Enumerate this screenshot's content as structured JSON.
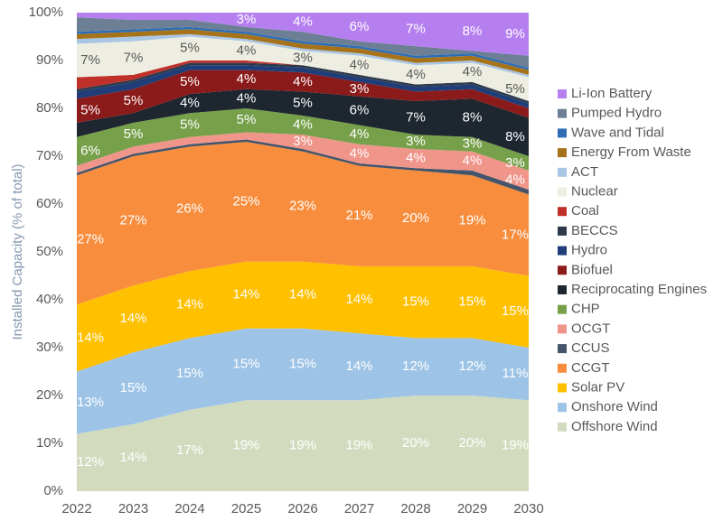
{
  "chart_data": {
    "type": "stacked-area",
    "y_label": "Installed Capacity (% of total)",
    "x": [
      2022,
      2023,
      2024,
      2025,
      2026,
      2027,
      2028,
      2029,
      2030
    ],
    "xlim": [
      2022,
      2030
    ],
    "ylim": [
      0,
      100
    ],
    "yticks": [
      {
        "value": 0,
        "label": "0%"
      },
      {
        "value": 10,
        "label": "10%"
      },
      {
        "value": 20,
        "label": "20%"
      },
      {
        "value": 30,
        "label": "30%"
      },
      {
        "value": 40,
        "label": "40%"
      },
      {
        "value": 50,
        "label": "50%"
      },
      {
        "value": 60,
        "label": "60%"
      },
      {
        "value": 70,
        "label": "70%"
      },
      {
        "value": 80,
        "label": "80%"
      },
      {
        "value": 90,
        "label": "90%"
      },
      {
        "value": 100,
        "label": "100%"
      }
    ],
    "series": [
      {
        "name": "Offshore Wind",
        "color": "#d3dbbf",
        "values": [
          12,
          14,
          17,
          19,
          19,
          19,
          20,
          20,
          19
        ],
        "value_labels": [
          "12%",
          "14%",
          "17%",
          "19%",
          "19%",
          "19%",
          "20%",
          "20%",
          "19%"
        ]
      },
      {
        "name": "Onshore Wind",
        "color": "#9dc3e6",
        "values": [
          13,
          15,
          15,
          15,
          15,
          14,
          12,
          12,
          11
        ],
        "value_labels": [
          "13%",
          "15%",
          "15%",
          "15%",
          "15%",
          "14%",
          "12%",
          "12%",
          "11%"
        ]
      },
      {
        "name": "Solar PV",
        "color": "#ffc000",
        "values": [
          14,
          14,
          14,
          14,
          14,
          14,
          15,
          15,
          15
        ],
        "value_labels": [
          "14%",
          "14%",
          "14%",
          "14%",
          "14%",
          "14%",
          "15%",
          "15%",
          "15%"
        ]
      },
      {
        "name": "CCGT",
        "color": "#f78d3d",
        "values": [
          27,
          27,
          26,
          25,
          23,
          21,
          20,
          19,
          17
        ],
        "value_labels": [
          "27%",
          "27%",
          "26%",
          "25%",
          "23%",
          "21%",
          "20%",
          "19%",
          "17%"
        ]
      },
      {
        "name": "CCUS",
        "color": "#44546a",
        "values": [
          0.5,
          0.5,
          0.5,
          0.5,
          0.5,
          0.5,
          0.5,
          1,
          1
        ],
        "value_labels": [
          null,
          null,
          null,
          null,
          null,
          null,
          null,
          null,
          null
        ]
      },
      {
        "name": "OCGT",
        "color": "#f0958a",
        "values": [
          1.5,
          1.5,
          1.5,
          1.5,
          3,
          4,
          4,
          4,
          4
        ],
        "value_labels": [
          null,
          null,
          null,
          null,
          "3%",
          "4%",
          "4%",
          "4%",
          "4%"
        ]
      },
      {
        "name": "CHP",
        "color": "#77a04a",
        "values": [
          6,
          5,
          5,
          5,
          4,
          4,
          3,
          3,
          3
        ],
        "value_labels": [
          "6%",
          "5%",
          "5%",
          "5%",
          "4%",
          "4%",
          "3%",
          "3%",
          "3%"
        ]
      },
      {
        "name": "Reciprocating Engines",
        "color": "#1e2630",
        "values": [
          3,
          2,
          4,
          4,
          5,
          6,
          7,
          8,
          8
        ],
        "value_labels": [
          null,
          null,
          "4%",
          "4%",
          "5%",
          "6%",
          "7%",
          "8%",
          "8%"
        ]
      },
      {
        "name": "Biofuel",
        "color": "#8b1a1a",
        "values": [
          5,
          5,
          5,
          4,
          4,
          3,
          2,
          2,
          2
        ],
        "value_labels": [
          "5%",
          "5%",
          "5%",
          "4%",
          "4%",
          "3%",
          null,
          null,
          null
        ]
      },
      {
        "name": "Hydro",
        "color": "#1f3d78",
        "values": [
          1.5,
          1.5,
          1,
          1,
          1,
          1,
          1,
          1,
          1
        ],
        "value_labels": [
          null,
          null,
          null,
          null,
          null,
          null,
          null,
          null,
          null
        ]
      },
      {
        "name": "BECCS",
        "color": "#2d3a4a",
        "values": [
          0.5,
          0.5,
          0.5,
          0.5,
          0.5,
          0.5,
          0.5,
          0.5,
          0.5
        ],
        "value_labels": [
          null,
          null,
          null,
          null,
          null,
          null,
          null,
          null,
          null
        ]
      },
      {
        "name": "Coal",
        "color": "#c0302a",
        "values": [
          2.5,
          1,
          0.5,
          0.5,
          0,
          0,
          0,
          0,
          0
        ],
        "value_labels": [
          null,
          null,
          null,
          null,
          null,
          null,
          null,
          null,
          null
        ]
      },
      {
        "name": "Nuclear",
        "color": "#eeede2",
        "values": [
          7,
          7,
          5,
          4,
          3,
          4,
          4,
          4,
          5
        ],
        "value_labels": [
          "7%",
          "7%",
          "5%",
          "4%",
          "3%",
          "4%",
          "4%",
          "4%",
          "5%"
        ]
      },
      {
        "name": "ACT",
        "color": "#a9c6e5",
        "values": [
          1,
          1,
          0.5,
          0.5,
          0.5,
          0.5,
          0.5,
          0.5,
          0.5
        ],
        "value_labels": [
          null,
          null,
          null,
          null,
          null,
          null,
          null,
          null,
          null
        ]
      },
      {
        "name": "Energy From Waste",
        "color": "#a6731a",
        "values": [
          1,
          1,
          1,
          1,
          1,
          1,
          1,
          1,
          1
        ],
        "value_labels": [
          null,
          null,
          null,
          null,
          null,
          null,
          null,
          null,
          null
        ]
      },
      {
        "name": "Wave and Tidal",
        "color": "#2e6db4",
        "values": [
          0.5,
          0.5,
          0.5,
          0.5,
          0.5,
          0.5,
          0.5,
          0.5,
          0.5
        ],
        "value_labels": [
          null,
          null,
          null,
          null,
          null,
          null,
          null,
          null,
          null
        ]
      },
      {
        "name": "Pumped Hydro",
        "color": "#6c7f95",
        "values": [
          3,
          2,
          1.5,
          1,
          2,
          1,
          2,
          0.5,
          2.5
        ],
        "value_labels": [
          null,
          null,
          null,
          null,
          null,
          null,
          null,
          null,
          null
        ]
      },
      {
        "name": "Li-Ion Battery",
        "color": "#b57ff0",
        "values": [
          1,
          1.5,
          1.5,
          3,
          4,
          6,
          7,
          8,
          9
        ],
        "value_labels": [
          null,
          null,
          null,
          "3%",
          "4%",
          "6%",
          "7%",
          "8%",
          "9%"
        ]
      }
    ]
  }
}
